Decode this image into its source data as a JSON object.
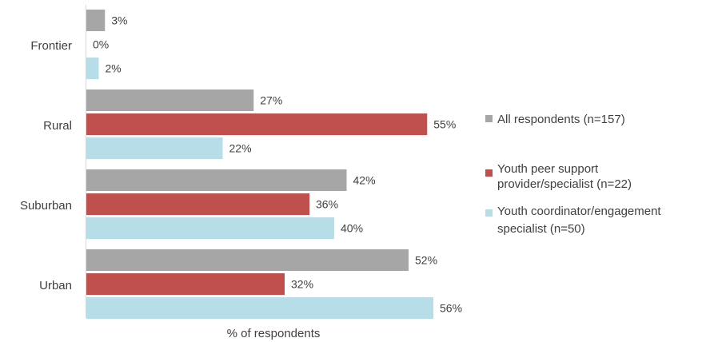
{
  "chart_data": {
    "type": "bar",
    "orientation": "horizontal",
    "categories": [
      "Frontier",
      "Rural",
      "Suburban",
      "Urban"
    ],
    "series": [
      {
        "name": "All respondents (n=157)",
        "values": [
          3,
          27,
          42,
          52
        ],
        "labels": [
          "3%",
          "27%",
          "42%",
          "52%"
        ],
        "color": "#a6a6a6"
      },
      {
        "name": "Youth peer support provider/specialist (n=22)",
        "values": [
          0,
          55,
          36,
          32
        ],
        "labels": [
          "0%",
          "55%",
          "36%",
          "32%"
        ],
        "color": "#c0504d"
      },
      {
        "name": "Youth coordinator/engagement specialist (n=50)",
        "values": [
          2,
          22,
          40,
          56
        ],
        "labels": [
          "2%",
          "22%",
          "40%",
          "56%"
        ],
        "color": "#b7dde8"
      }
    ],
    "xlabel": "% of respondents",
    "ylabel": "",
    "xlim": [
      0,
      56
    ],
    "grid": false,
    "legend": "right"
  }
}
